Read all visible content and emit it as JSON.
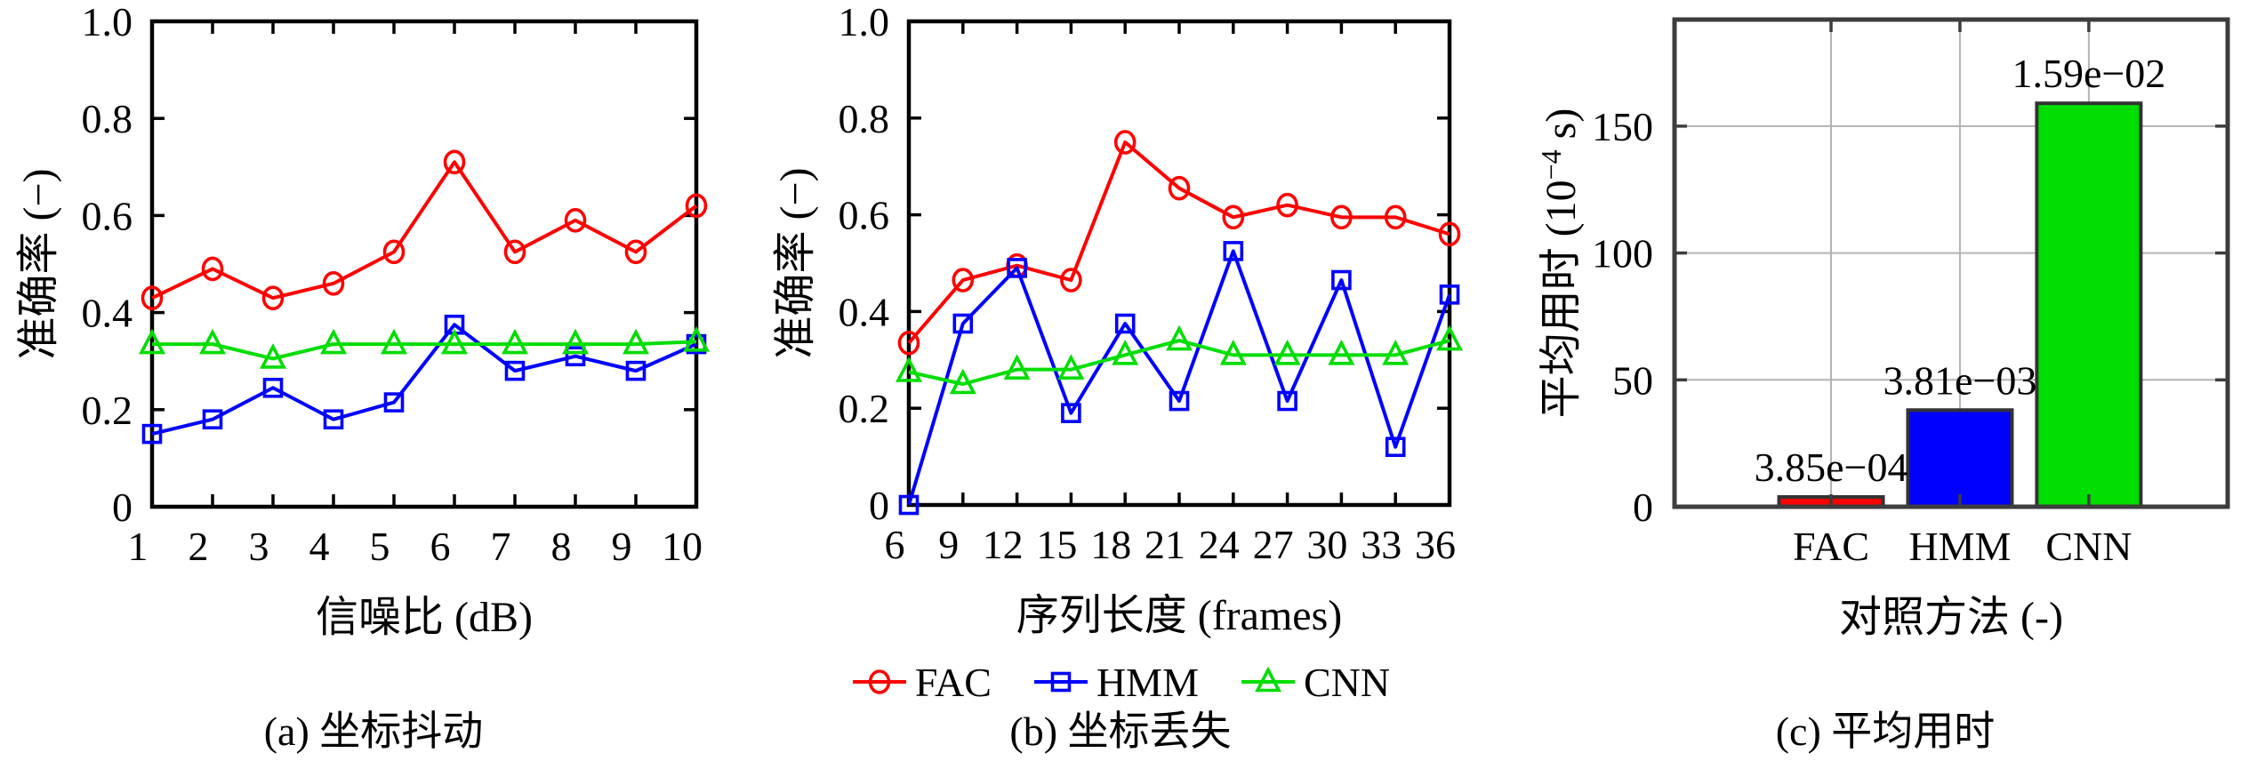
{
  "figure": {
    "background": "#ffffff",
    "captions": {
      "a": "(a) 坐标抖动",
      "b": "(b) 坐标丢失",
      "c": "(c) 平均用时"
    },
    "legend": {
      "position": "bottom-center",
      "items": [
        {
          "label": "FAC",
          "color": "#ff0000",
          "marker": "circle"
        },
        {
          "label": "HMM",
          "color": "#0000ff",
          "marker": "square"
        },
        {
          "label": "CNN",
          "color": "#00dd00",
          "marker": "triangle"
        }
      ]
    },
    "colors": {
      "axis_line": "#000000",
      "bar_frame": "#3d3d3d",
      "grid": "#b3b3b3",
      "bar_edge": "#333333"
    }
  },
  "chart_data": [
    {
      "id": "a",
      "type": "line",
      "title": "",
      "xlabel": "信噪比 (dB)",
      "ylabel": "准确率 (−)",
      "xlim": [
        1,
        10
      ],
      "ylim": [
        0,
        1.0
      ],
      "grid": false,
      "legend_position": "shared-bottom",
      "x": [
        1,
        2,
        3,
        4,
        5,
        6,
        7,
        8,
        9,
        10
      ],
      "xtick_labels": [
        "1",
        "2",
        "3",
        "4",
        "5",
        "6",
        "7",
        "8",
        "9",
        "10"
      ],
      "yticks": [
        0,
        0.2,
        0.4,
        0.6,
        0.8,
        1.0
      ],
      "ytick_labels": [
        "0",
        "0.2",
        "0.4",
        "0.6",
        "0.8",
        "1.0"
      ],
      "series": [
        {
          "name": "FAC",
          "color": "#ff0000",
          "marker": "circle",
          "values": [
            0.43,
            0.49,
            0.43,
            0.46,
            0.525,
            0.71,
            0.525,
            0.59,
            0.525,
            0.62
          ]
        },
        {
          "name": "HMM",
          "color": "#0000ff",
          "marker": "square",
          "values": [
            0.15,
            0.18,
            0.245,
            0.18,
            0.215,
            0.375,
            0.28,
            0.31,
            0.28,
            0.335
          ]
        },
        {
          "name": "CNN",
          "color": "#00dd00",
          "marker": "triangle",
          "values": [
            0.335,
            0.335,
            0.305,
            0.335,
            0.335,
            0.335,
            0.335,
            0.335,
            0.335,
            0.34
          ]
        }
      ]
    },
    {
      "id": "b",
      "type": "line",
      "title": "",
      "xlabel": "序列长度 (frames)",
      "ylabel": "准确率 (−)",
      "xlim": [
        6,
        36
      ],
      "ylim": [
        0,
        1.0
      ],
      "grid": false,
      "legend_position": "shared-bottom",
      "x": [
        6,
        9,
        12,
        15,
        18,
        21,
        24,
        27,
        30,
        33,
        36
      ],
      "xtick_labels": [
        "6",
        "9",
        "12",
        "15",
        "18",
        "21",
        "24",
        "27",
        "30",
        "33",
        "36"
      ],
      "yticks": [
        0,
        0.2,
        0.4,
        0.6,
        0.8,
        1.0
      ],
      "ytick_labels": [
        "0",
        "0.2",
        "0.4",
        "0.6",
        "0.8",
        "1.0"
      ],
      "series": [
        {
          "name": "FAC",
          "color": "#ff0000",
          "marker": "circle",
          "values": [
            0.335,
            0.465,
            0.495,
            0.465,
            0.75,
            0.655,
            0.595,
            0.62,
            0.595,
            0.595,
            0.56
          ]
        },
        {
          "name": "HMM",
          "color": "#0000ff",
          "marker": "square",
          "values": [
            0.0,
            0.375,
            0.49,
            0.19,
            0.375,
            0.215,
            0.525,
            0.215,
            0.465,
            0.12,
            0.435
          ]
        },
        {
          "name": "CNN",
          "color": "#00dd00",
          "marker": "triangle",
          "values": [
            0.275,
            0.25,
            0.28,
            0.28,
            0.31,
            0.34,
            0.31,
            0.31,
            0.31,
            0.31,
            0.34
          ]
        }
      ]
    },
    {
      "id": "c",
      "type": "bar",
      "title": "",
      "xlabel": "对照方法 (-)",
      "ylabel_parts": {
        "pre": "平均用时 (10",
        "sup": "−4",
        "post": " s)"
      },
      "categories": [
        "FAC",
        "HMM",
        "CNN"
      ],
      "values": [
        3.85,
        38.1,
        159
      ],
      "value_labels": [
        "3.85e−04",
        "3.81e−03",
        "1.59e−02"
      ],
      "bar_colors": [
        "#ff0000",
        "#0000ff",
        "#00dd00"
      ],
      "ylim": [
        0,
        192
      ],
      "yticks": [
        0,
        50,
        100,
        150
      ],
      "ytick_labels": [
        "0",
        "50",
        "100",
        "150"
      ],
      "grid": true
    }
  ]
}
